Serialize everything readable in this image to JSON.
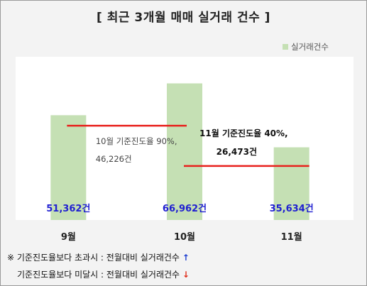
{
  "title": "[ 최근 3개월 매매 실거래 건수 ]",
  "legend_label": "실거래건수",
  "colors": {
    "bar": "#c5e0b4",
    "value_label": "#1f1fd1",
    "guide_line": "#e8201c",
    "up_arrow": "#1f3fd1",
    "down_arrow": "#e0301e"
  },
  "chart_data": {
    "type": "bar",
    "categories": [
      "9월",
      "10월",
      "11월"
    ],
    "series": [
      {
        "name": "실거래건수",
        "values": [
          51362,
          66962,
          35634
        ]
      }
    ],
    "data_labels": [
      "51,362건",
      "66,962건",
      "35,634건"
    ],
    "ylim": [
      0,
      80000
    ],
    "grid": false,
    "legend": "top-right",
    "annotations": [
      {
        "line1": "10월 기준진도율 90%,",
        "line2": "46,226건",
        "value": 46226,
        "from": "9월",
        "to": "10월"
      },
      {
        "line1": "11월 기준진도율 40%,",
        "line2": "26,473건",
        "value": 26473,
        "from": "10월",
        "to": "11월"
      }
    ]
  },
  "footnotes": {
    "prefix": "※",
    "line1": "기준진도율보다 초과시 : 전월대비 실거래건수",
    "line1_arrow": "↑",
    "line2": "기준진도율보다 미달시 : 전월대비 실거래건수",
    "line2_arrow": "↓"
  }
}
